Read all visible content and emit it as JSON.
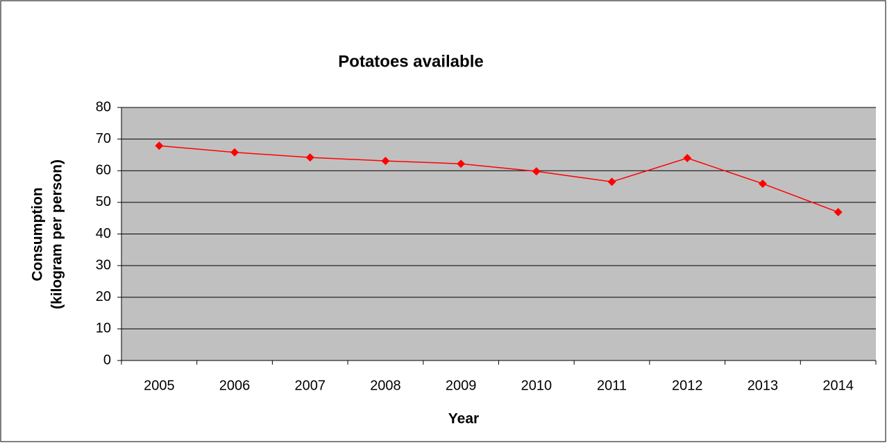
{
  "chart_data": {
    "type": "line",
    "title": "Potatoes available",
    "xlabel": "Year",
    "ylabel": [
      "Consumption",
      "(kilogram per person)"
    ],
    "categories": [
      "2005",
      "2006",
      "2007",
      "2008",
      "2009",
      "2010",
      "2011",
      "2012",
      "2013",
      "2014"
    ],
    "series": [
      {
        "name": "Potatoes",
        "color": "#ff0000",
        "values": [
          67.9,
          65.8,
          64.2,
          63.1,
          62.2,
          59.8,
          56.5,
          64.0,
          55.9,
          46.9
        ]
      }
    ],
    "ylim": [
      0,
      80
    ],
    "yticks": [
      0,
      10,
      20,
      30,
      40,
      50,
      60,
      70,
      80
    ],
    "grid": true,
    "legend": false
  }
}
